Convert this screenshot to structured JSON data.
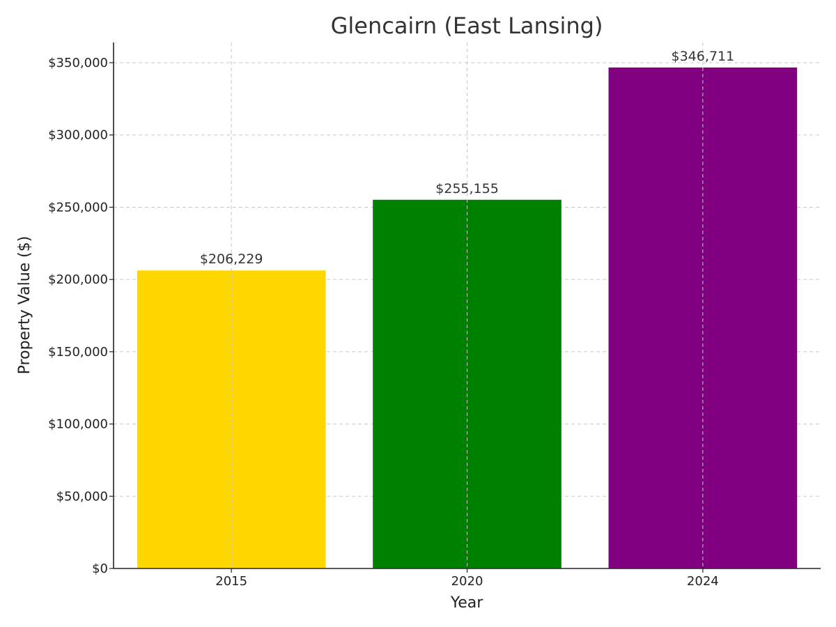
{
  "chart_data": {
    "type": "bar",
    "title": "Glencairn (East Lansing)",
    "xlabel": "Year",
    "ylabel": "Property Value ($)",
    "categories": [
      "2015",
      "2020",
      "2024"
    ],
    "values": [
      206229,
      255155,
      346711
    ],
    "value_labels": [
      "$206,229",
      "$255,155",
      "$346,711"
    ],
    "colors": [
      "#FFD700",
      "#008000",
      "#800080"
    ],
    "ylim": [
      0,
      364000
    ],
    "yticks": [
      0,
      50000,
      100000,
      150000,
      200000,
      250000,
      300000,
      350000
    ],
    "ytick_labels": [
      "$0",
      "$50,000",
      "$100,000",
      "$150,000",
      "$200,000",
      "$250,000",
      "$300,000",
      "$350,000"
    ],
    "grid": true,
    "legend": "none"
  }
}
